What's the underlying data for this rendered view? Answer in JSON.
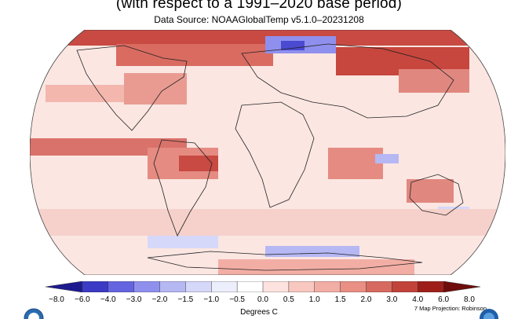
{
  "header": {
    "subtitle": "(with respect to a 1991–2020 base period)",
    "source": "Data Source: NOAAGlobalTemp v5.1.0–20231208"
  },
  "map": {
    "type": "global temperature anomaly map"
  },
  "legend": {
    "ticks": [
      "−8.0",
      "−6.0",
      "−4.0",
      "−3.0",
      "−2.0",
      "−1.5",
      "−1.0",
      "−0.5",
      "0.0",
      "0.5",
      "1.0",
      "1.5",
      "2.0",
      "3.0",
      "4.0",
      "6.0",
      "8.0"
    ],
    "colors": [
      "#1d1a8f",
      "#3b3bc6",
      "#6464e0",
      "#8f90ee",
      "#b6b8f4",
      "#d6d8fa",
      "#edeefc",
      "#ffffff",
      "#fde3df",
      "#f8c8c0",
      "#f2aea4",
      "#e98f84",
      "#d76a5f",
      "#c2433a",
      "#9e1f1a",
      "#6e0d0b"
    ],
    "units": "Degrees C",
    "projection": "7 Map Projection: Robinson"
  }
}
